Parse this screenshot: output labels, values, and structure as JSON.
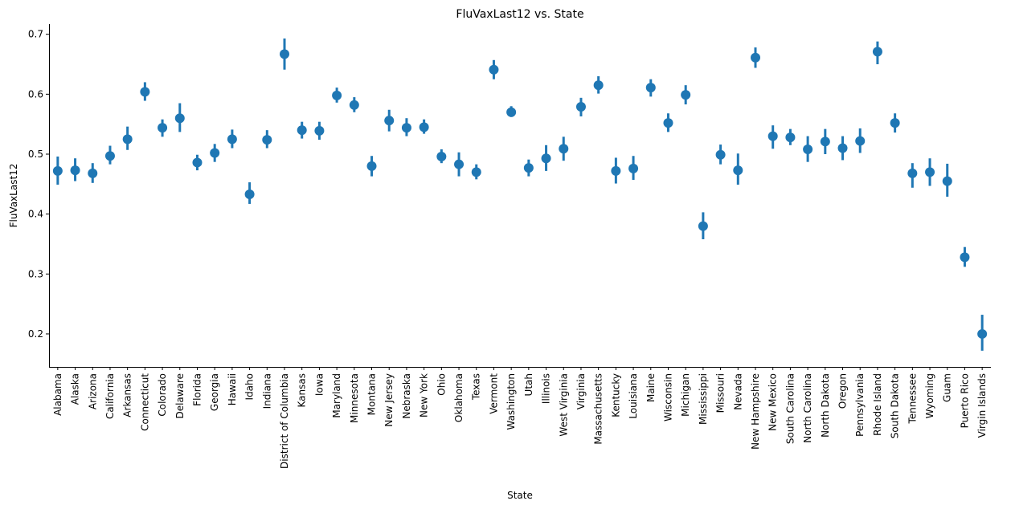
{
  "chart_data": {
    "type": "scatter",
    "title": "FluVaxLast12 vs. State",
    "xlabel": "State",
    "ylabel": "FluVaxLast12",
    "ylim": [
      0.145,
      0.717
    ],
    "yticks": [
      "0.2",
      "0.3",
      "0.4",
      "0.5",
      "0.6",
      "0.7"
    ],
    "ytick_values": [
      0.2,
      0.3,
      0.4,
      0.5,
      0.6,
      0.7
    ],
    "grid": false,
    "error_bars": true,
    "color": "#1f77b4",
    "categories": [
      "Alabama",
      "Alaska",
      "Arizona",
      "California",
      "Arkansas",
      "Connecticut",
      "Colorado",
      "Delaware",
      "Florida",
      "Georgia",
      "Hawaii",
      "Idaho",
      "Indiana",
      "District of Columbia",
      "Kansas",
      "Iowa",
      "Maryland",
      "Minnesota",
      "Montana",
      "New Jersey",
      "Nebraska",
      "New York",
      "Ohio",
      "Oklahoma",
      "Texas",
      "Vermont",
      "Washington",
      "Utah",
      "Illinois",
      "West Virginia",
      "Virginia",
      "Massachusetts",
      "Kentucky",
      "Louisiana",
      "Maine",
      "Wisconsin",
      "Michigan",
      "Mississippi",
      "Missouri",
      "Nevada",
      "New Hampshire",
      "New Mexico",
      "South Carolina",
      "North Carolina",
      "North Dakota",
      "Oregon",
      "Pennsylvania",
      "Rhode Island",
      "South Dakota",
      "Tennessee",
      "Wyoming",
      "Guam",
      "Puerto Rico",
      "Virgin Islands"
    ],
    "values": [
      0.472,
      0.473,
      0.468,
      0.497,
      0.525,
      0.604,
      0.544,
      0.56,
      0.486,
      0.502,
      0.525,
      0.433,
      0.524,
      0.667,
      0.54,
      0.539,
      0.598,
      0.582,
      0.48,
      0.556,
      0.544,
      0.545,
      0.496,
      0.483,
      0.47,
      0.641,
      0.57,
      0.477,
      0.493,
      0.509,
      0.579,
      0.615,
      0.472,
      0.476,
      0.611,
      0.552,
      0.599,
      0.38,
      0.499,
      0.473,
      0.661,
      0.53,
      0.528,
      0.508,
      0.521,
      0.51,
      0.522,
      0.671,
      0.552,
      0.468,
      0.47,
      0.455,
      0.328,
      0.2
    ],
    "ci_low": [
      0.449,
      0.455,
      0.452,
      0.483,
      0.507,
      0.589,
      0.529,
      0.537,
      0.473,
      0.487,
      0.51,
      0.417,
      0.51,
      0.641,
      0.526,
      0.524,
      0.586,
      0.57,
      0.463,
      0.538,
      0.53,
      0.534,
      0.485,
      0.463,
      0.458,
      0.625,
      0.562,
      0.463,
      0.472,
      0.489,
      0.563,
      0.601,
      0.451,
      0.457,
      0.596,
      0.537,
      0.583,
      0.358,
      0.483,
      0.449,
      0.644,
      0.509,
      0.515,
      0.487,
      0.5,
      0.49,
      0.502,
      0.65,
      0.536,
      0.444,
      0.447,
      0.429,
      0.312,
      0.172
    ],
    "ci_high": [
      0.496,
      0.493,
      0.485,
      0.514,
      0.546,
      0.62,
      0.558,
      0.585,
      0.499,
      0.517,
      0.541,
      0.453,
      0.54,
      0.693,
      0.554,
      0.554,
      0.611,
      0.595,
      0.497,
      0.574,
      0.56,
      0.558,
      0.508,
      0.503,
      0.483,
      0.657,
      0.58,
      0.491,
      0.515,
      0.529,
      0.594,
      0.63,
      0.494,
      0.497,
      0.625,
      0.568,
      0.615,
      0.403,
      0.516,
      0.501,
      0.678,
      0.548,
      0.542,
      0.53,
      0.542,
      0.53,
      0.543,
      0.688,
      0.568,
      0.485,
      0.493,
      0.484,
      0.345,
      0.232
    ]
  }
}
